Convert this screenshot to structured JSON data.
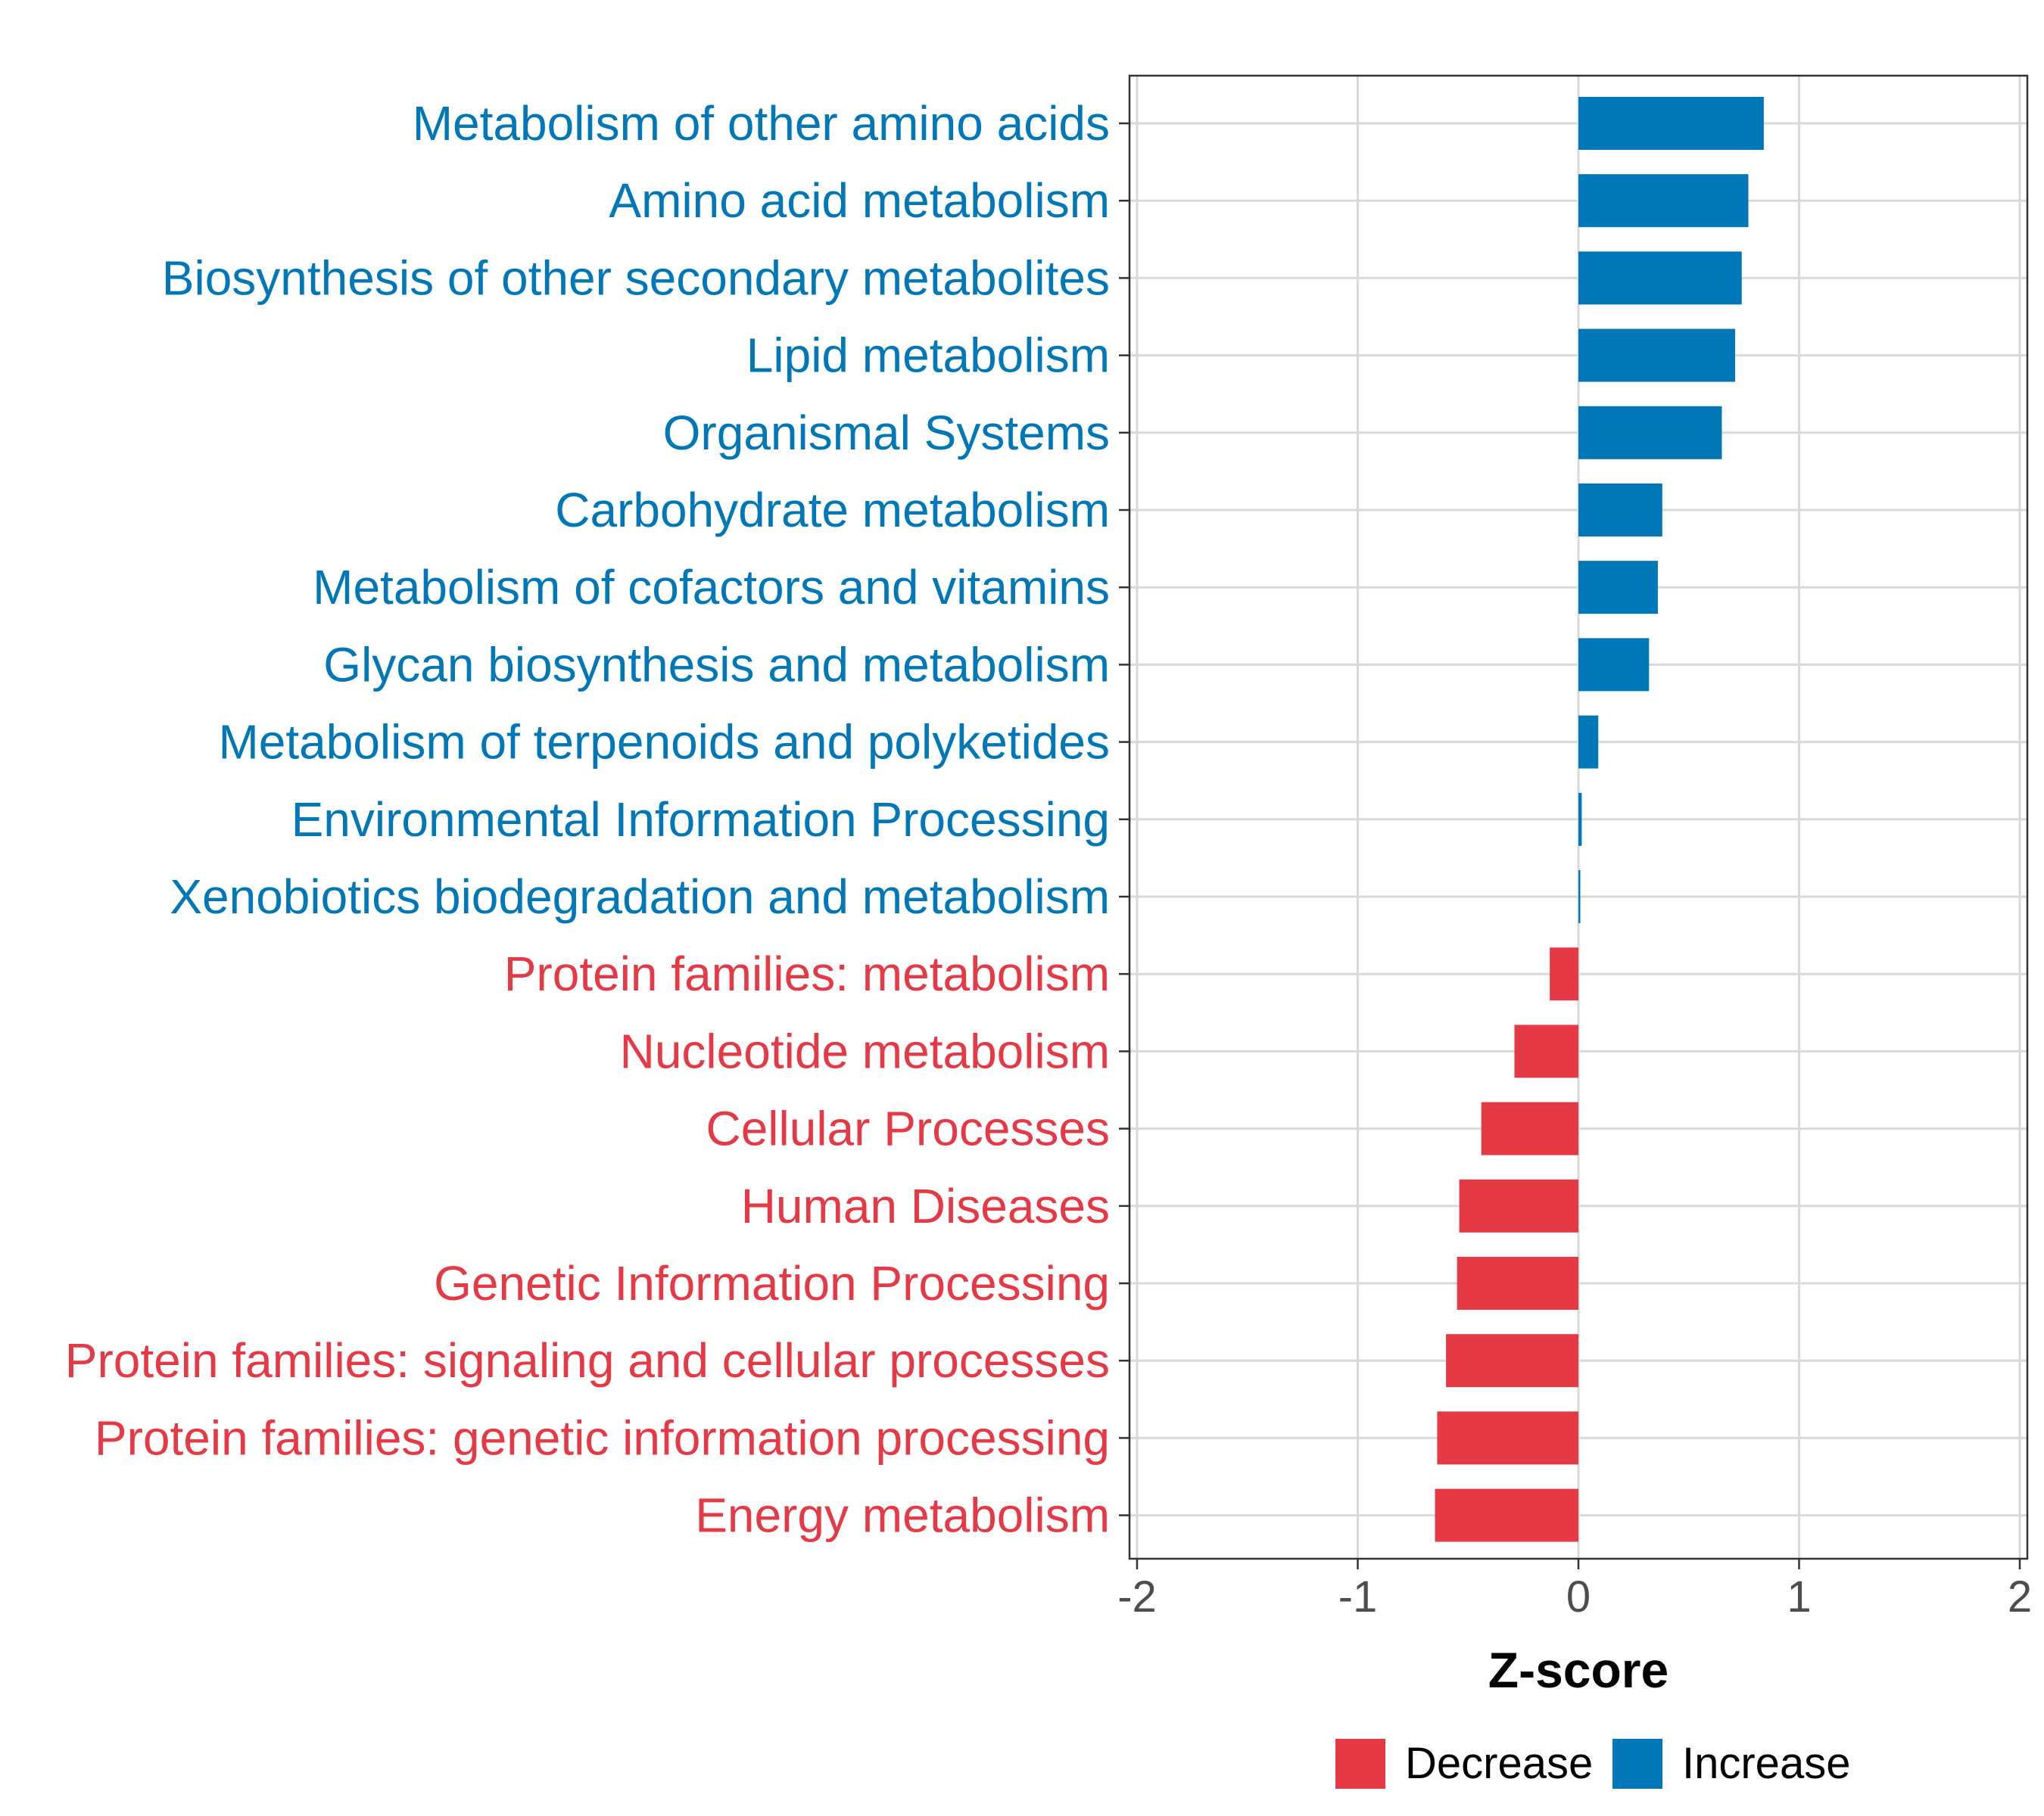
{
  "chart_data": {
    "type": "bar",
    "orientation": "horizontal",
    "xlabel": "Z-score",
    "xlim": [
      -2,
      2
    ],
    "xticks": [
      -2,
      -1,
      0,
      1,
      2
    ],
    "xtick_labels": [
      "-2",
      "-1",
      "0",
      "1",
      "2"
    ],
    "grid": true,
    "legend_position": "bottom",
    "legend": [
      {
        "name": "Decrease",
        "color": "#e63946"
      },
      {
        "name": "Increase",
        "color": "#0077b6"
      }
    ],
    "categories": [
      "Metabolism of other amino acids",
      "Amino acid metabolism",
      "Biosynthesis of other secondary metabolites",
      "Lipid metabolism",
      "Organismal Systems",
      "Carbohydrate metabolism",
      "Metabolism of cofactors and vitamins",
      "Glycan biosynthesis and metabolism",
      "Metabolism of terpenoids and polyketides",
      "Environmental Information Processing",
      "Xenobiotics biodegradation and metabolism",
      "Protein families: metabolism",
      "Nucleotide metabolism",
      "Cellular Processes",
      "Human Diseases",
      "Genetic Information Processing",
      "Protein families: signaling and cellular processes",
      "Protein families: genetic information processing",
      "Energy metabolism"
    ],
    "values": [
      0.84,
      0.77,
      0.74,
      0.71,
      0.65,
      0.38,
      0.36,
      0.32,
      0.09,
      0.015,
      0.005,
      -0.13,
      -0.29,
      -0.44,
      -0.54,
      -0.55,
      -0.6,
      -0.64,
      -0.65
    ],
    "groups": [
      "Increase",
      "Increase",
      "Increase",
      "Increase",
      "Increase",
      "Increase",
      "Increase",
      "Increase",
      "Increase",
      "Increase",
      "Increase",
      "Decrease",
      "Decrease",
      "Decrease",
      "Decrease",
      "Decrease",
      "Decrease",
      "Decrease",
      "Decrease"
    ]
  }
}
